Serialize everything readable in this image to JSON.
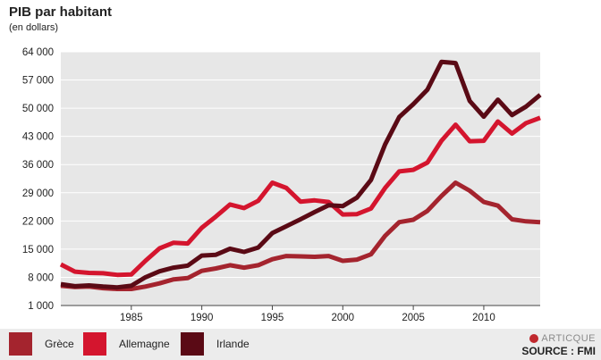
{
  "chart_data": {
    "type": "line",
    "title": "PIB par habitant",
    "subtitle": "(en dollars)",
    "xlabel": "",
    "ylabel": "",
    "xlim": [
      1980,
      2014
    ],
    "ylim": [
      1000,
      64000
    ],
    "yticks": [
      1000,
      8000,
      15000,
      22000,
      29000,
      36000,
      43000,
      50000,
      57000,
      64000
    ],
    "ytick_labels": [
      "1 000",
      "8 000",
      "15 000",
      "22 000",
      "29 000",
      "36 000",
      "43 000",
      "50 000",
      "57 000",
      "64 000"
    ],
    "xticks": [
      1985,
      1990,
      1995,
      2000,
      2005,
      2010
    ],
    "xtick_labels": [
      "1985",
      "1990",
      "1995",
      "2000",
      "2005",
      "2010"
    ],
    "grid": true,
    "x": [
      1980,
      1981,
      1982,
      1983,
      1984,
      1985,
      1986,
      1987,
      1988,
      1989,
      1990,
      1991,
      1992,
      1993,
      1994,
      1995,
      1996,
      1997,
      1998,
      1999,
      2000,
      2001,
      2002,
      2003,
      2004,
      2005,
      2006,
      2007,
      2008,
      2009,
      2010,
      2011,
      2012,
      2013,
      2014
    ],
    "series": [
      {
        "name": "Grèce",
        "color": "#a4242e",
        "values": [
          5900,
          5600,
          5700,
          5300,
          5100,
          5100,
          5700,
          6500,
          7500,
          7800,
          9600,
          10200,
          11000,
          10400,
          11000,
          12500,
          13300,
          13200,
          13100,
          13300,
          12100,
          12400,
          13700,
          18300,
          21700,
          22300,
          24500,
          28200,
          31500,
          29500,
          26700,
          25800,
          22400,
          21900,
          21700
        ]
      },
      {
        "name": "Allemagne",
        "color": "#d4152e",
        "values": [
          11200,
          9400,
          9100,
          9000,
          8600,
          8700,
          12100,
          15200,
          16600,
          16400,
          20300,
          23100,
          26100,
          25200,
          27000,
          31500,
          30200,
          26800,
          27100,
          26700,
          23600,
          23700,
          25100,
          30200,
          34300,
          34700,
          36500,
          41900,
          45900,
          41800,
          41900,
          46700,
          43700,
          46300,
          47600
        ]
      },
      {
        "name": "Irlande",
        "color": "#5a0a15",
        "values": [
          6300,
          5800,
          6000,
          5700,
          5500,
          5900,
          8000,
          9500,
          10400,
          10900,
          13400,
          13600,
          15100,
          14300,
          15400,
          19000,
          20700,
          22400,
          24200,
          25900,
          25700,
          27800,
          32200,
          41000,
          47800,
          51000,
          54600,
          61500,
          61200,
          51800,
          47900,
          52100,
          48300,
          50400,
          53300
        ]
      }
    ],
    "legend_position": "bottom",
    "source": "SOURCE : FMI",
    "brand": "ARTICQUE"
  }
}
